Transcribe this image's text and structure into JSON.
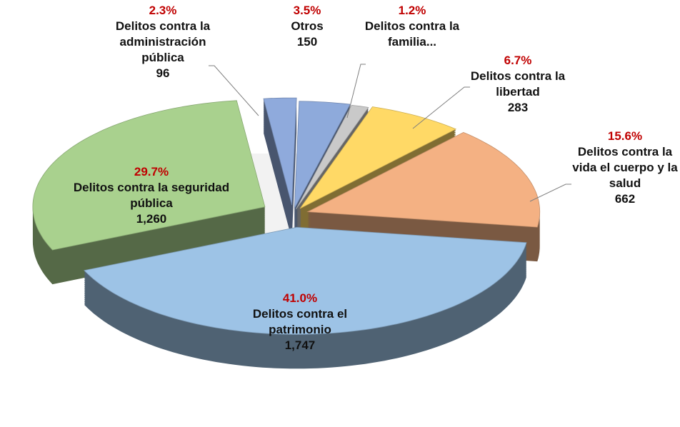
{
  "chart_data": {
    "type": "pie3d",
    "categories": [
      "Otros",
      "Delitos contra la familia...",
      "Delitos contra la libertad",
      "Delitos contra la vida el cuerpo y la salud",
      "Delitos contra el patrimonio",
      "Delitos contra la seguridad pública",
      "Delitos contra la administración pública"
    ],
    "values": [
      150,
      51,
      283,
      662,
      1747,
      1260,
      96
    ],
    "value_labels": [
      "150",
      null,
      "283",
      "662",
      "1,747",
      "1,260",
      "96"
    ],
    "percentages": [
      3.5,
      1.2,
      6.7,
      15.6,
      41.0,
      29.7,
      2.3
    ],
    "percentage_labels": [
      "3.5%",
      "1.2%",
      "6.7%",
      "15.6%",
      "41.0%",
      "29.7%",
      "2.3%"
    ],
    "colors": [
      "#8eaadb",
      "#c9c9c9",
      "#ffd966",
      "#f4b183",
      "#9dc3e6",
      "#a9d18e",
      "#8faadc"
    ]
  }
}
